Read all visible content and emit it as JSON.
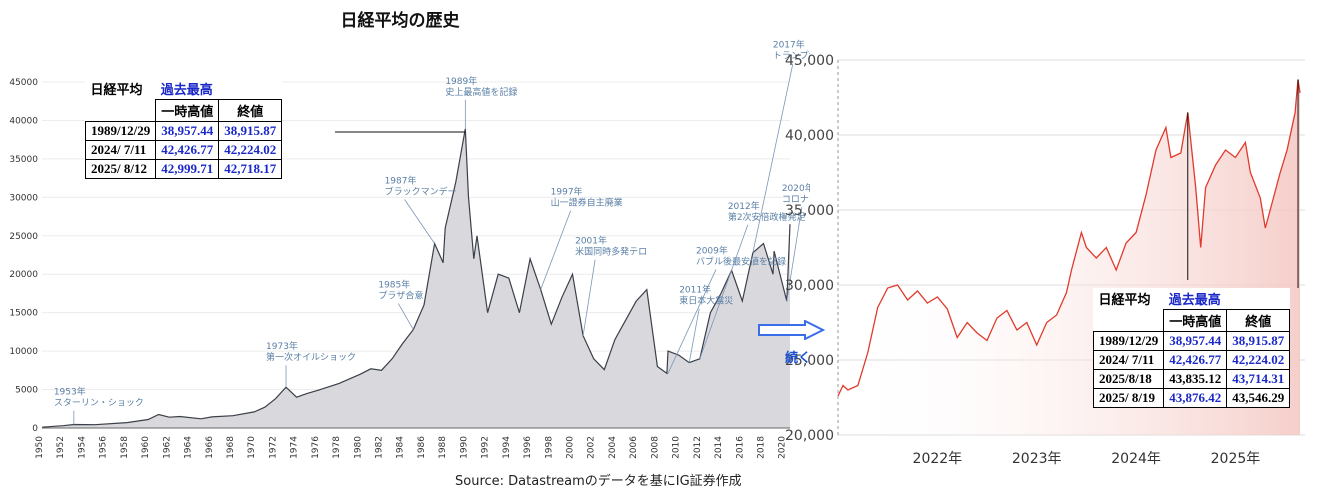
{
  "title": "日経平均の歴史",
  "source": "Source: Datastreamのデータを基にIG証券作成",
  "continue_label": "続く",
  "colors": {
    "long_fill": "#d9d9dd",
    "long_line": "#3a3f48",
    "annotation": "#5a7fa6",
    "recent_line": "#e03a2c",
    "recent_fill": "#f4c9c4",
    "blue_text": "#1a28c8",
    "arrow": "#3a6ee8"
  },
  "table_left": {
    "title": "日経平均",
    "title2": "過去最高",
    "col1": "一時高値",
    "col2": "終値",
    "rows": [
      {
        "date": "1989/12/29",
        "high": "38,957.44",
        "close": "38,915.87"
      },
      {
        "date": "2024/ 7/11",
        "high": "42,426.77",
        "close": "42,224.02"
      },
      {
        "date": "2025/ 8/12",
        "high": "42,999.71",
        "close": "42,718.17"
      }
    ]
  },
  "table_right": {
    "title": "日経平均",
    "title2": "過去最高",
    "col1": "一時高値",
    "col2": "終値",
    "rows": [
      {
        "date": "1989/12/29",
        "high": "38,957.44",
        "close": "38,915.87"
      },
      {
        "date": "2024/ 7/11",
        "high": "42,426.77",
        "close": "42,224.02"
      },
      {
        "date": "2025/8/18",
        "high": "43,835.12",
        "close": "43,714.31"
      },
      {
        "date": "2025/ 8/19",
        "high": "43,876.42",
        "close": "43,546.29"
      }
    ]
  },
  "chart_data": [
    {
      "type": "area",
      "x_tick_labels": [
        "1950",
        "1952",
        "1954",
        "1956",
        "1958",
        "1960",
        "1962",
        "1964",
        "1966",
        "1968",
        "1970",
        "1972",
        "1974",
        "1976",
        "1978",
        "1980",
        "1982",
        "1984",
        "1986",
        "1988",
        "1990",
        "1992",
        "1994",
        "1996",
        "1998",
        "2000",
        "2002",
        "2004",
        "2006",
        "2008",
        "2010",
        "2012",
        "2014",
        "2016",
        "2018",
        "2020"
      ],
      "y_tick_labels": [
        "0",
        "5000",
        "10000",
        "15000",
        "20000",
        "25000",
        "30000",
        "35000",
        "40000",
        "45000"
      ],
      "ylim": [
        0,
        45000
      ],
      "xlim": [
        1950,
        2020.5
      ],
      "points": [
        [
          1950,
          100
        ],
        [
          1952,
          300
        ],
        [
          1953,
          450
        ],
        [
          1955,
          430
        ],
        [
          1958,
          700
        ],
        [
          1960,
          1100
        ],
        [
          1961,
          1750
        ],
        [
          1962,
          1400
        ],
        [
          1963,
          1500
        ],
        [
          1965,
          1200
        ],
        [
          1966,
          1450
        ],
        [
          1968,
          1600
        ],
        [
          1970,
          2100
        ],
        [
          1971,
          2700
        ],
        [
          1972,
          3800
        ],
        [
          1973,
          5300
        ],
        [
          1974,
          4000
        ],
        [
          1975,
          4500
        ],
        [
          1976,
          4900
        ],
        [
          1978,
          5800
        ],
        [
          1980,
          7000
        ],
        [
          1981,
          7700
        ],
        [
          1982,
          7500
        ],
        [
          1983,
          9000
        ],
        [
          1984,
          11000
        ],
        [
          1985,
          12800
        ],
        [
          1986,
          16000
        ],
        [
          1987,
          24000
        ],
        [
          1987.8,
          21500
        ],
        [
          1988,
          26000
        ],
        [
          1989,
          32000
        ],
        [
          1989.9,
          38915
        ],
        [
          1990.2,
          30000
        ],
        [
          1990.7,
          22000
        ],
        [
          1991,
          25000
        ],
        [
          1992,
          15000
        ],
        [
          1993,
          20000
        ],
        [
          1994,
          19500
        ],
        [
          1995,
          15000
        ],
        [
          1996,
          22000
        ],
        [
          1997,
          18000
        ],
        [
          1998,
          13500
        ],
        [
          1999,
          17000
        ],
        [
          2000,
          20000
        ],
        [
          2001,
          12000
        ],
        [
          2002,
          9000
        ],
        [
          2003,
          7600
        ],
        [
          2004,
          11500
        ],
        [
          2005,
          14000
        ],
        [
          2006,
          16500
        ],
        [
          2007,
          18000
        ],
        [
          2008,
          8000
        ],
        [
          2008.9,
          7100
        ],
        [
          2009,
          10000
        ],
        [
          2010,
          9500
        ],
        [
          2011,
          8500
        ],
        [
          2012,
          9000
        ],
        [
          2013,
          15000
        ],
        [
          2014,
          17500
        ],
        [
          2015,
          20500
        ],
        [
          2016,
          16500
        ],
        [
          2017,
          22800
        ],
        [
          2018,
          24000
        ],
        [
          2018.9,
          20000
        ],
        [
          2019,
          23000
        ],
        [
          2020.2,
          16500
        ],
        [
          2020.5,
          26500
        ]
      ],
      "annotations": [
        {
          "x": 1953,
          "y": 450,
          "text": [
            "1953年",
            "スターリン・ショック"
          ]
        },
        {
          "x": 1973,
          "y": 5300,
          "text": [
            "1973年",
            "第一次オイルショック"
          ]
        },
        {
          "x": 1985,
          "y": 12800,
          "text": [
            "1985年",
            "プラザ合意"
          ]
        },
        {
          "x": 1987,
          "y": 24000,
          "text": [
            "1987年",
            "ブラックマンデー"
          ]
        },
        {
          "x": 1989.9,
          "y": 38915,
          "text": [
            "1989年",
            "史上最高値を記録"
          ]
        },
        {
          "x": 1997,
          "y": 18000,
          "text": [
            "1997年",
            "山一證券自主廃業"
          ]
        },
        {
          "x": 2001,
          "y": 12000,
          "text": [
            "2001年",
            "米国同時多発テロ"
          ]
        },
        {
          "x": 2009,
          "y": 7100,
          "text": [
            "2009年",
            "バブル後最安値を記録"
          ]
        },
        {
          "x": 2011,
          "y": 8500,
          "text": [
            "2011年",
            "東日本大震災"
          ]
        },
        {
          "x": 2012,
          "y": 9000,
          "text": [
            "2012年",
            "第2次安倍政権発足"
          ]
        },
        {
          "x": 2017,
          "y": 22800,
          "text": [
            "2017年",
            "トランプ大統領就任"
          ]
        },
        {
          "x": 2020.2,
          "y": 16500,
          "text": [
            "2020年",
            "コロナショック"
          ]
        }
      ]
    },
    {
      "type": "line",
      "y_tick_labels": [
        "20,000",
        "25,000",
        "30,000",
        "35,000",
        "40,000",
        "45,000"
      ],
      "ylim": [
        20000,
        45000
      ],
      "x_tick_labels": [
        "2022年",
        "2023年",
        "2024年",
        "2025年"
      ],
      "xlim": [
        2021.0,
        2025.7
      ],
      "points": [
        [
          2021.0,
          22600
        ],
        [
          2021.05,
          23300
        ],
        [
          2021.1,
          23000
        ],
        [
          2021.2,
          23300
        ],
        [
          2021.3,
          25500
        ],
        [
          2021.4,
          28500
        ],
        [
          2021.5,
          29800
        ],
        [
          2021.6,
          30000
        ],
        [
          2021.7,
          29000
        ],
        [
          2021.8,
          29600
        ],
        [
          2021.9,
          28800
        ],
        [
          2022.0,
          29200
        ],
        [
          2022.1,
          28400
        ],
        [
          2022.2,
          26500
        ],
        [
          2022.3,
          27500
        ],
        [
          2022.4,
          26800
        ],
        [
          2022.5,
          26300
        ],
        [
          2022.6,
          27800
        ],
        [
          2022.7,
          28300
        ],
        [
          2022.8,
          27000
        ],
        [
          2022.9,
          27500
        ],
        [
          2023.0,
          26000
        ],
        [
          2023.1,
          27500
        ],
        [
          2023.2,
          28000
        ],
        [
          2023.3,
          29500
        ],
        [
          2023.35,
          31000
        ],
        [
          2023.45,
          33500
        ],
        [
          2023.5,
          32500
        ],
        [
          2023.6,
          31800
        ],
        [
          2023.7,
          32500
        ],
        [
          2023.8,
          31000
        ],
        [
          2023.9,
          32800
        ],
        [
          2024.0,
          33500
        ],
        [
          2024.1,
          36000
        ],
        [
          2024.2,
          39000
        ],
        [
          2024.3,
          40500
        ],
        [
          2024.35,
          38500
        ],
        [
          2024.45,
          38800
        ],
        [
          2024.52,
          41500
        ],
        [
          2024.6,
          36500
        ],
        [
          2024.65,
          32500
        ],
        [
          2024.7,
          36500
        ],
        [
          2024.8,
          38000
        ],
        [
          2024.9,
          39000
        ],
        [
          2025.0,
          38500
        ],
        [
          2025.1,
          39500
        ],
        [
          2025.15,
          37500
        ],
        [
          2025.25,
          35800
        ],
        [
          2025.3,
          33800
        ],
        [
          2025.35,
          35000
        ],
        [
          2025.45,
          37500
        ],
        [
          2025.52,
          39000
        ],
        [
          2025.6,
          41500
        ],
        [
          2025.63,
          43700
        ],
        [
          2025.65,
          42800
        ]
      ]
    }
  ]
}
